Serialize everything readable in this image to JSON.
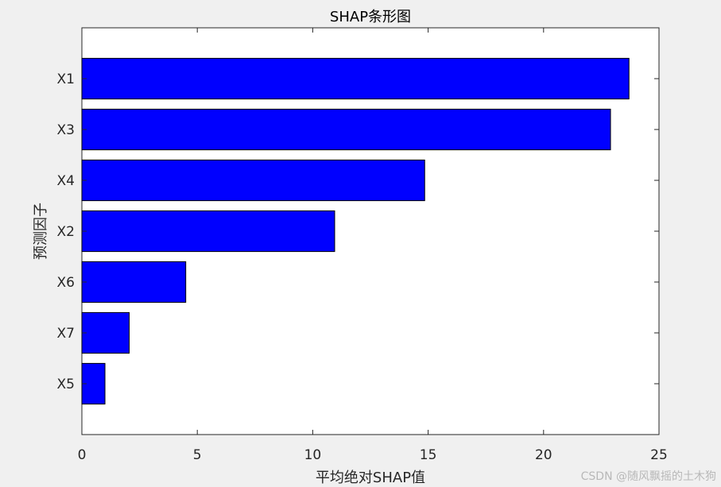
{
  "chart_data": {
    "type": "bar",
    "orientation": "horizontal",
    "title": "SHAP条形图",
    "xlabel": "平均绝对SHAP值",
    "ylabel": "预测因子",
    "categories": [
      "X1",
      "X3",
      "X4",
      "X2",
      "X6",
      "X7",
      "X5"
    ],
    "values": [
      23.7,
      22.9,
      14.85,
      10.95,
      4.5,
      2.05,
      1.0
    ],
    "xlim": [
      0,
      25
    ],
    "xticks": [
      "0",
      "5",
      "10",
      "15",
      "20",
      "25"
    ],
    "grid": false,
    "bar_color": "#0000ff",
    "bar_edge_color": "#000000"
  },
  "watermark": "CSDN @随风飘摇的土木狗"
}
